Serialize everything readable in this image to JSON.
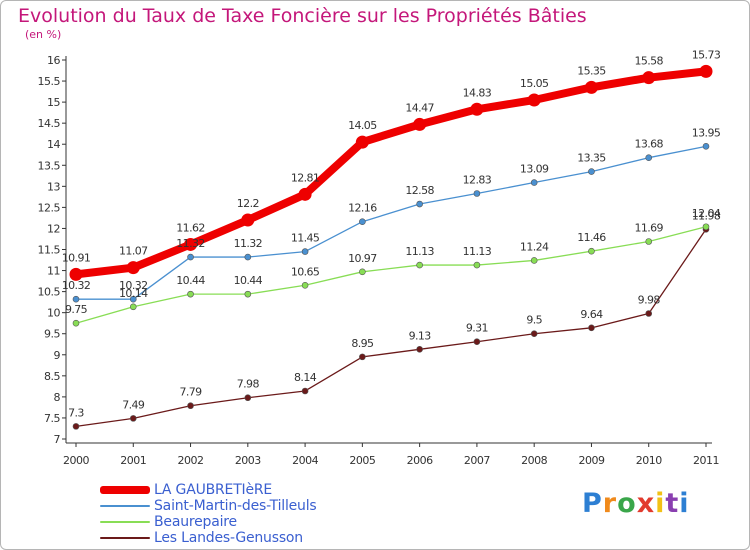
{
  "title": "Evolution du Taux de Taxe Foncière sur les Propriétés Bâties",
  "unit_label": "(en %)",
  "logo_text": "Proxiti",
  "chart_data": {
    "type": "line",
    "x": [
      "2000",
      "2001",
      "2002",
      "2003",
      "2004",
      "2005",
      "2006",
      "2007",
      "2008",
      "2009",
      "2010",
      "2011"
    ],
    "ylim": [
      7,
      16
    ],
    "y_ticks": [
      "7",
      "7.5",
      "8",
      "8.5",
      "9",
      "9.5",
      "10",
      "10.5",
      "11",
      "11.5",
      "12",
      "12.5",
      "13",
      "13.5",
      "14",
      "14.5",
      "15",
      "15.5",
      "16"
    ],
    "grid": false,
    "legend_position": "bottom-left",
    "series": [
      {
        "name": "LA GAUBRETIèRE",
        "color": "#ee0000",
        "values": [
          10.91,
          11.07,
          11.62,
          12.2,
          12.81,
          14.05,
          14.47,
          14.83,
          15.05,
          15.35,
          15.58,
          15.73
        ],
        "labels": [
          "10.91",
          "11.07",
          "11.62",
          "12.2",
          "12.81",
          "14.05",
          "14.47",
          "14.83",
          "15.05",
          "15.35",
          "15.58",
          "15.73"
        ]
      },
      {
        "name": "Saint-Martin-des-Tilleuls",
        "color": "#4a90d0",
        "values": [
          10.32,
          10.32,
          11.32,
          11.32,
          11.45,
          12.16,
          12.58,
          12.83,
          13.09,
          13.35,
          13.68,
          13.95
        ],
        "labels": [
          "10.32",
          "10.32",
          "11.32",
          "11.32",
          "11.45",
          "12.16",
          "12.58",
          "12.83",
          "13.09",
          "13.35",
          "13.68",
          "13.95"
        ]
      },
      {
        "name": "Beaurepaire",
        "color": "#88dd55",
        "values": [
          9.75,
          10.14,
          10.44,
          10.44,
          10.65,
          10.97,
          11.13,
          11.13,
          11.24,
          11.46,
          11.69,
          12.04
        ],
        "labels": [
          "9.75",
          "10.14",
          "10.44",
          "10.44",
          "10.65",
          "10.97",
          "11.13",
          "11.13",
          "11.24",
          "11.46",
          "11.69",
          "12.04"
        ]
      },
      {
        "name": "Les Landes-Genusson",
        "color": "#6b1a1a",
        "values": [
          7.3,
          7.49,
          7.79,
          7.98,
          8.14,
          8.95,
          9.13,
          9.31,
          9.5,
          9.64,
          9.98,
          11.98
        ],
        "labels": [
          "7.3",
          "7.49",
          "7.79",
          "7.98",
          "8.14",
          "8.95",
          "9.13",
          "9.31",
          "9.5",
          "9.64",
          "9.98",
          "11.98"
        ]
      }
    ]
  }
}
